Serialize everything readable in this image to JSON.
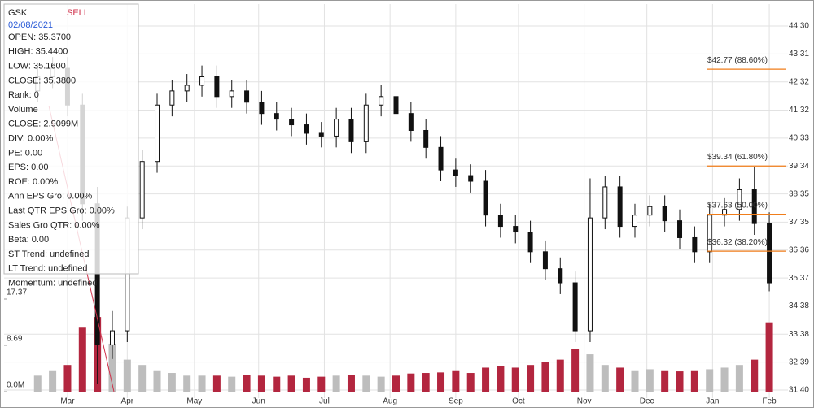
{
  "chart_data": {
    "type": "candlestick",
    "info": {
      "symbol": "GSK",
      "signal": "SELL",
      "date": "02/08/2021",
      "lines": [
        "OPEN: 35.3700",
        "HIGH: 35.4400",
        "LOW: 35.1600",
        "CLOSE: 35.3800",
        "Rank: 0",
        "Volume",
        "CLOSE: 2.9099M",
        "DIV: 0.00%",
        "PE: 0.00",
        "EPS: 0.00",
        "ROE: 0.00%",
        "Ann EPS Gro: 0.00%",
        "Last QTR EPS Gro: 0.00%",
        "Sales Gro QTR: 0.00%",
        "Beta: 0.00",
        "ST Trend: undefined",
        "LT Trend: undefined",
        "Momentum: undefined"
      ]
    },
    "x": [
      0,
      1,
      2,
      3,
      4,
      5,
      6,
      7,
      8,
      9,
      10,
      11,
      12,
      13,
      14,
      15,
      16,
      17,
      18,
      19,
      20,
      21,
      22,
      23,
      24,
      25,
      26,
      27,
      28,
      29,
      30,
      31,
      32,
      33,
      34,
      35,
      36,
      37,
      38,
      39,
      40,
      41,
      42,
      43,
      44,
      45,
      46,
      47,
      48,
      49
    ],
    "open": [
      42.0,
      42.5,
      42.8,
      41.5,
      38,
      33,
      33.5,
      37.5,
      39.5,
      41.5,
      42,
      42.2,
      42.5,
      41.8,
      42,
      41.6,
      41.2,
      41,
      40.8,
      40.5,
      40.4,
      41,
      40.2,
      41.5,
      41.8,
      41.2,
      40.6,
      40,
      39.2,
      39,
      38.8,
      37.6,
      37.2,
      37,
      36.3,
      35.7,
      35.2,
      33.5,
      37.5,
      38.6,
      37.2,
      37.6,
      37.9,
      37.4,
      36.8,
      36.3,
      37.6,
      37.8,
      38.5,
      37.3
    ],
    "high": [
      42.9,
      43.2,
      43.2,
      41.9,
      38.6,
      34.2,
      37.9,
      39.9,
      41.9,
      42.4,
      42.6,
      42.9,
      42.9,
      42.4,
      42.4,
      42.0,
      41.6,
      41.4,
      41.2,
      40.9,
      41.4,
      41.4,
      41.9,
      42.2,
      42.2,
      41.6,
      41.0,
      40.4,
      39.6,
      39.4,
      39.2,
      38.0,
      37.6,
      37.4,
      36.7,
      36.1,
      35.6,
      38.9,
      39.0,
      39.0,
      38.0,
      38.3,
      38.3,
      37.8,
      37.2,
      38.0,
      38.2,
      38.9,
      39.3,
      37.7
    ],
    "low": [
      41.6,
      42.1,
      41.1,
      37.4,
      31.6,
      32.5,
      33.1,
      37.1,
      39.1,
      41.1,
      41.6,
      41.8,
      41.4,
      41.4,
      41.2,
      40.8,
      40.6,
      40.4,
      40.1,
      40.0,
      40.0,
      39.8,
      39.8,
      41.1,
      40.8,
      40.2,
      39.6,
      38.8,
      38.6,
      38.4,
      37.2,
      36.8,
      36.6,
      35.9,
      35.3,
      34.8,
      33.1,
      33.1,
      37.1,
      36.8,
      36.8,
      37.2,
      37.0,
      36.4,
      35.9,
      35.9,
      37.2,
      37.4,
      36.9,
      34.9
    ],
    "close": [
      42.5,
      42.8,
      41.5,
      38,
      33,
      33.5,
      37.5,
      39.5,
      41.5,
      42,
      42.2,
      42.5,
      41.8,
      42,
      41.6,
      41.2,
      41,
      40.8,
      40.5,
      40.4,
      41,
      40.2,
      41.5,
      41.8,
      41.2,
      40.6,
      40,
      39.2,
      39,
      38.8,
      37.6,
      37.2,
      37,
      36.3,
      35.7,
      35.2,
      33.5,
      37.5,
      38.6,
      37.2,
      37.6,
      37.9,
      37.4,
      36.8,
      36.3,
      37.6,
      37.8,
      38.5,
      37.3,
      35.2
    ],
    "volume": [
      3,
      4,
      5,
      12,
      14,
      9,
      6,
      5,
      4,
      3.5,
      3,
      3,
      3,
      2.8,
      3.2,
      3,
      2.8,
      3,
      2.6,
      2.8,
      3,
      3.2,
      3,
      2.8,
      3,
      3.4,
      3.5,
      3.6,
      4,
      3.5,
      4.5,
      4.8,
      4.5,
      5,
      5.5,
      6,
      8,
      7,
      5,
      4.5,
      4,
      4.2,
      4,
      3.8,
      4,
      4.2,
      4.5,
      5,
      6,
      13
    ],
    "xlim": [
      -2.25,
      50.25
    ],
    "xticks": [
      {
        "value": 2,
        "label": "Mar"
      },
      {
        "value": 6,
        "label": "Apr"
      },
      {
        "value": 10.5,
        "label": "May"
      },
      {
        "value": 14.8,
        "label": "Jun"
      },
      {
        "value": 19.2,
        "label": "Jul"
      },
      {
        "value": 23.6,
        "label": "Aug"
      },
      {
        "value": 28,
        "label": "Sep"
      },
      {
        "value": 32.2,
        "label": "Oct"
      },
      {
        "value": 36.6,
        "label": "Nov"
      },
      {
        "value": 40.8,
        "label": "Dec"
      },
      {
        "value": 45.2,
        "label": "Jan"
      },
      {
        "value": 49,
        "label": "Feb"
      }
    ],
    "ylim": [
      31.4,
      44.3
    ],
    "yticks": [
      {
        "value": 44.3,
        "label": "44.30"
      },
      43.31,
      42.32,
      41.32,
      40.33,
      39.34,
      38.35,
      37.35,
      36.36,
      35.37,
      34.38,
      33.38,
      32.39,
      {
        "value": 31.4,
        "label": "31.40"
      }
    ],
    "y2lim": [
      0,
      68.57
    ],
    "y2ticks": [
      {
        "value": 0,
        "label": "0.0M"
      },
      8.69,
      17.37
    ],
    "fib": [
      {
        "value": 42.77,
        "label": "$42.77 (88.60%)"
      },
      {
        "value": 39.34,
        "label": "$39.34 (61.80%)"
      },
      {
        "value": 37.63,
        "label": "$37.63 (50.00%)"
      },
      {
        "value": 36.32,
        "label": "$36.32 (38.20%)"
      }
    ],
    "grid": true
  }
}
